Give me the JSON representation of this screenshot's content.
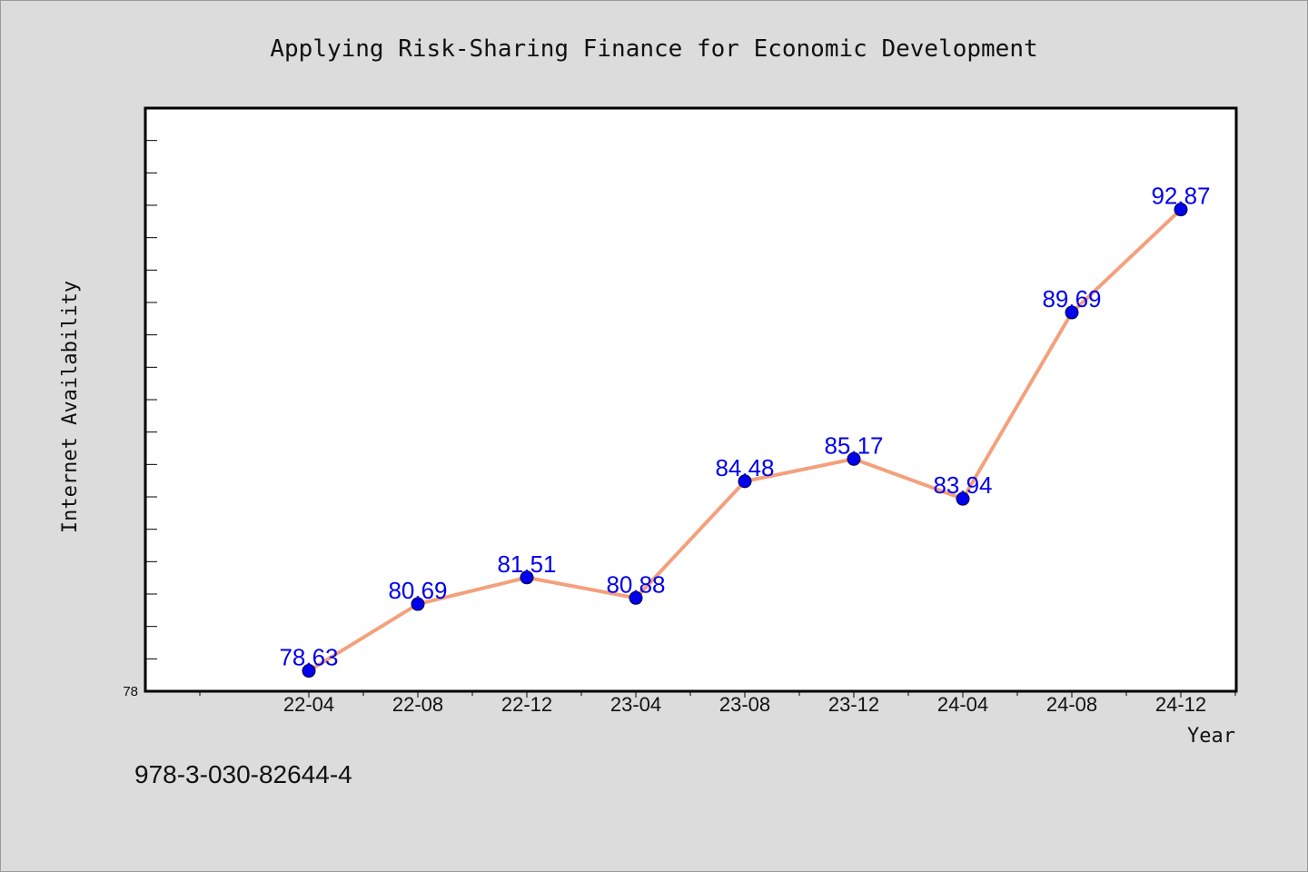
{
  "chart_data": {
    "type": "line",
    "title": "Applying Risk-Sharing Finance for Economic Development",
    "xlabel": "Year",
    "ylabel": "Internet Availability",
    "categories": [
      "22-04",
      "22-08",
      "22-12",
      "23-04",
      "23-08",
      "23-12",
      "24-04",
      "24-08",
      "24-12"
    ],
    "values": [
      78.63,
      80.69,
      81.51,
      80.88,
      84.48,
      85.17,
      83.94,
      89.69,
      92.87
    ],
    "data_labels": [
      "78.63",
      "80.69",
      "81.51",
      "80.88",
      "84.48",
      "85.17",
      "83.94",
      "89.69",
      "92.87"
    ],
    "ylim": [
      78,
      96
    ],
    "yticks_labeled": [
      "78"
    ],
    "line_color": "#f4a07c",
    "marker_color": "#0000ee",
    "label_color": "#0000ee",
    "grid": false
  },
  "footer": {
    "isbn": "978-3-030-82644-4"
  }
}
